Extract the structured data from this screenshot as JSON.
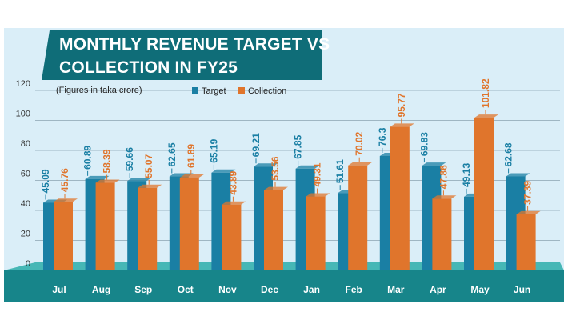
{
  "colors": {
    "background": "#daeef8",
    "target": "#1a7fa4",
    "collection": "#e0752c",
    "banner": "#0f6d78",
    "floor": "#46b7b6",
    "floor_front": "#17858a",
    "gridline": "#9fb6c3"
  },
  "chart_data": {
    "type": "bar",
    "title_line1": "MONTHLY REVENUE TARGET VS",
    "title_line2": "COLLECTION IN FY25",
    "note": "(Figures in taka crore)",
    "categories": [
      "Jul",
      "Aug",
      "Sep",
      "Oct",
      "Nov",
      "Dec",
      "Jan",
      "Feb",
      "Mar",
      "Apr",
      "May",
      "Jun"
    ],
    "series": [
      {
        "name": "Target",
        "values": [
          45.09,
          60.89,
          59.66,
          62.65,
          65.19,
          69.21,
          67.85,
          51.61,
          76.3,
          69.83,
          49.13,
          62.68
        ],
        "labels": [
          "45.09",
          "60.89",
          "59.66",
          "62.65",
          "65.19",
          "69.21",
          "67.85",
          "51.61",
          "76.3",
          "69.83",
          "49.13",
          "62.68"
        ]
      },
      {
        "name": "Collection",
        "values": [
          45.76,
          58.39,
          55.07,
          61.89,
          43.89,
          53.56,
          49.31,
          70.02,
          95.77,
          47.86,
          101.82,
          37.39
        ],
        "labels": [
          "45.76",
          "58.39",
          "55.07",
          "61.89",
          "43.89",
          "53.56",
          "49.31",
          "70.02",
          "95.77",
          "47.86",
          "101.82",
          "37.39"
        ]
      }
    ],
    "yticks": [
      "0",
      "20",
      "40",
      "60",
      "80",
      "100",
      "120"
    ],
    "ylim": [
      0,
      120
    ],
    "legend_position": "top-left"
  }
}
